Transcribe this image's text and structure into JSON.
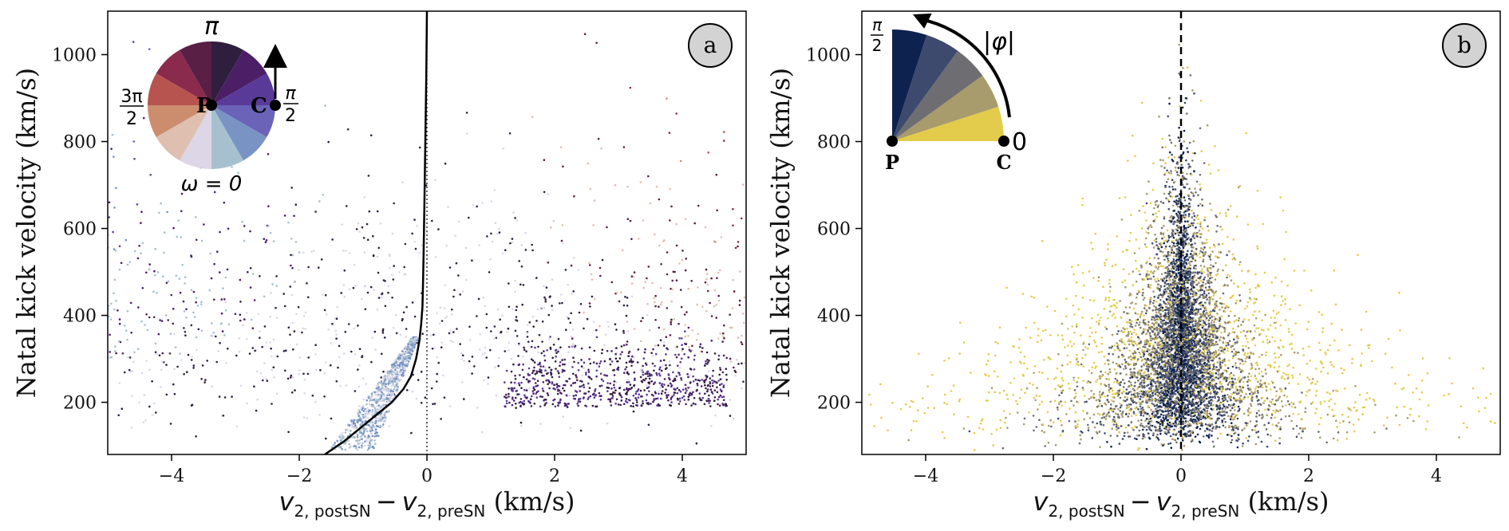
{
  "chart_data": [
    {
      "type": "scatter",
      "panel_label": "a",
      "xlabel": {
        "main": "v",
        "sub": "2, postSN",
        "minus": "−",
        "main2": "v",
        "sub2": "2, preSN",
        "unit": " (km/s)"
      },
      "ylabel": "Natal kick velocity (km/s)",
      "xlim": [
        -5,
        5
      ],
      "ylim": [
        80,
        1100
      ],
      "xticks": [
        -4,
        -2,
        0,
        2,
        4
      ],
      "xtick_labels": [
        "−4",
        "−2",
        "0",
        "2",
        "4"
      ],
      "yticks": [
        200,
        400,
        600,
        800,
        1000
      ],
      "ytick_labels": [
        "200",
        "400",
        "600",
        "800",
        "1000"
      ],
      "grid": false,
      "color_encoding": "omega",
      "inset": {
        "type": "color-wheel",
        "top_label": "π",
        "left_label_num": "3π",
        "left_label_den": "2",
        "right_label_num": "π",
        "right_label_den": "2",
        "bottom_label": "ω = 0",
        "center_label": "P",
        "rim_label": "C",
        "colors": [
          "#2f1e3e",
          "#4b1e66",
          "#5a3a99",
          "#6a63b8",
          "#7893c4",
          "#a6c0cf",
          "#dcd6e6",
          "#dfbfb0",
          "#cc8d6f",
          "#b7544f",
          "#8a2a4d",
          "#5a1f45"
        ]
      },
      "median_curve": {
        "y": [
          80,
          110,
          140,
          170,
          200,
          230,
          260,
          300,
          340,
          380,
          420,
          480,
          560,
          650,
          750,
          850,
          950,
          1100
        ],
        "x": [
          -1.6,
          -1.3,
          -1.05,
          -0.8,
          -0.55,
          -0.37,
          -0.25,
          -0.17,
          -0.12,
          -0.09,
          -0.07,
          -0.06,
          -0.05,
          -0.04,
          -0.03,
          -0.02,
          -0.01,
          0.0
        ]
      },
      "reference_line": {
        "x": 0,
        "style": "dotted"
      }
    },
    {
      "type": "scatter",
      "panel_label": "b",
      "xlabel": {
        "main": "v",
        "sub": "2, postSN",
        "minus": "−",
        "main2": "v",
        "sub2": "2, preSN",
        "unit": " (km/s)"
      },
      "ylabel": "Natal kick velocity (km/s)",
      "xlim": [
        -5,
        5
      ],
      "ylim": [
        80,
        1100
      ],
      "xticks": [
        -4,
        -2,
        0,
        2,
        4
      ],
      "xtick_labels": [
        "−4",
        "−2",
        "0",
        "2",
        "4"
      ],
      "yticks": [
        200,
        400,
        600,
        800,
        1000
      ],
      "ytick_labels": [
        "200",
        "400",
        "600",
        "800",
        "1000"
      ],
      "grid": false,
      "color_encoding": "|phi|",
      "inset": {
        "type": "quarter-wheel",
        "top_label_num": "π",
        "top_label_den": "2",
        "arc_label": "|φ|",
        "zero_label": "0",
        "center_label": "P",
        "rim_label": "C",
        "colors": [
          "#e3cc4b",
          "#a89b6c",
          "#6e6e72",
          "#3d4a6e",
          "#0e2250"
        ]
      },
      "reference_line": {
        "x": 0,
        "style": "dashed"
      }
    }
  ]
}
